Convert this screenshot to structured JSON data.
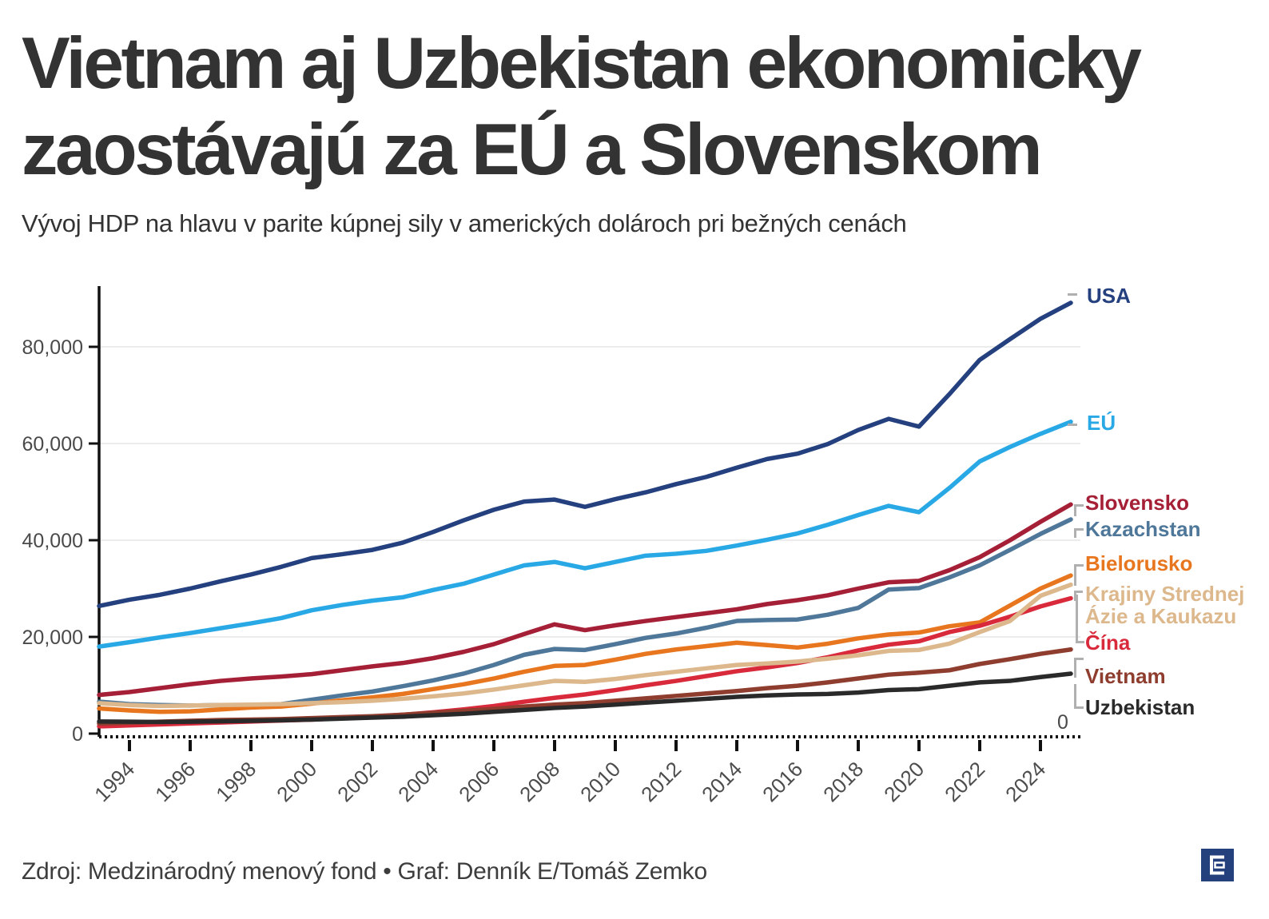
{
  "header": {
    "title_line1": "Vietnam aj Uzbekistan ekonomicky",
    "title_line2": "zaostávajú za EÚ a Slovenskom",
    "subtitle": "Vývoj HDP na hlavu v parite kúpnej sily v amerických dolároch pri bežných cenách"
  },
  "footer": {
    "source": "Zdroj: Medzinárodný menový fond • Graf: Denník E/Tomáš Zemko",
    "logo_name": "dennik-e-logo"
  },
  "chart_data": {
    "type": "line",
    "title": "Vývoj HDP na hlavu v parite kúpnej sily v amerických dolároch pri bežných cenách",
    "xlabel": "",
    "ylabel": "",
    "grid": true,
    "legend_position": "right",
    "xlim": [
      1993,
      2025.3
    ],
    "ylim": [
      0,
      96000
    ],
    "xticks": [
      1994,
      1996,
      1998,
      2000,
      2002,
      2004,
      2006,
      2008,
      2010,
      2012,
      2014,
      2016,
      2018,
      2020,
      2022,
      2024
    ],
    "yticks": [
      0,
      20000,
      40000,
      60000,
      80000
    ],
    "ytick_labels": [
      "0",
      "20,000",
      "40,000",
      "60,000",
      "80,000"
    ],
    "right_zero_label": "0",
    "x": [
      1993,
      1994,
      1995,
      1996,
      1997,
      1998,
      1999,
      2000,
      2001,
      2002,
      2003,
      2004,
      2005,
      2006,
      2007,
      2008,
      2009,
      2010,
      2011,
      2012,
      2013,
      2014,
      2015,
      2016,
      2017,
      2018,
      2019,
      2020,
      2021,
      2022,
      2023,
      2024,
      2025
    ],
    "series": [
      {
        "id": "usa",
        "label": "USA",
        "color": "#24407e",
        "values": [
          26400,
          27700,
          28700,
          30000,
          31500,
          32900,
          34500,
          36300,
          37100,
          38000,
          39500,
          41700,
          44100,
          46300,
          48000,
          48400,
          46900,
          48500,
          49900,
          51600,
          53100,
          55000,
          56800,
          57900,
          59900,
          62800,
          65100,
          63500,
          70200,
          77300,
          81600,
          85800,
          89100
        ]
      },
      {
        "id": "eu",
        "label": "EÚ",
        "color": "#29a8e6",
        "values": [
          18000,
          18900,
          19900,
          20800,
          21800,
          22800,
          23900,
          25500,
          26600,
          27500,
          28200,
          29700,
          31000,
          32900,
          34800,
          35500,
          34200,
          35500,
          36800,
          37200,
          37800,
          38900,
          40100,
          41400,
          43200,
          45200,
          47100,
          45800,
          50800,
          56300,
          59300,
          62000,
          64500
        ]
      },
      {
        "id": "slovensko",
        "label": "Slovensko",
        "color": "#a52036",
        "values": [
          8000,
          8600,
          9400,
          10200,
          10900,
          11400,
          11800,
          12300,
          13100,
          13900,
          14600,
          15600,
          16900,
          18500,
          20600,
          22600,
          21400,
          22400,
          23300,
          24100,
          24900,
          25700,
          26800,
          27600,
          28600,
          30000,
          31300,
          31600,
          33800,
          36500,
          40000,
          43800,
          47400
        ]
      },
      {
        "id": "kazachstan",
        "label": "Kazachstan",
        "color": "#4e7799",
        "values": [
          6600,
          6100,
          5900,
          5800,
          5900,
          5800,
          6100,
          7000,
          7900,
          8700,
          9800,
          11000,
          12400,
          14200,
          16300,
          17500,
          17300,
          18500,
          19800,
          20700,
          21900,
          23300,
          23500,
          23600,
          24600,
          26000,
          29800,
          30100,
          32300,
          34800,
          38000,
          41300,
          44300
        ]
      },
      {
        "id": "bielorusko",
        "label": "Bielorusko",
        "color": "#e8761f",
        "values": [
          5200,
          4800,
          4500,
          4600,
          5000,
          5400,
          5600,
          6200,
          6900,
          7500,
          8200,
          9200,
          10200,
          11400,
          12800,
          14000,
          14200,
          15300,
          16500,
          17400,
          18100,
          18800,
          18300,
          17800,
          18600,
          19700,
          20500,
          20900,
          22200,
          23000,
          26500,
          30000,
          32700
        ]
      },
      {
        "id": "krajiny-strednej-azie",
        "label": "Krajiny Strednej Ázie a Kaukazu",
        "label_lines": [
          "Krajiny Strednej",
          "Ázie a Kaukazu"
        ],
        "color": "#dcb88c",
        "values": [
          6300,
          5900,
          5700,
          5800,
          5900,
          6000,
          6100,
          6300,
          6500,
          6800,
          7200,
          7700,
          8300,
          9100,
          10000,
          10900,
          10700,
          11300,
          12100,
          12800,
          13500,
          14200,
          14500,
          14900,
          15500,
          16200,
          17100,
          17300,
          18600,
          21000,
          23300,
          28500,
          30800
        ]
      },
      {
        "id": "cina",
        "label": "Čína",
        "color": "#d92a3c",
        "values": [
          1500,
          1700,
          1900,
          2100,
          2300,
          2500,
          2700,
          2900,
          3200,
          3500,
          3900,
          4400,
          5000,
          5700,
          6600,
          7400,
          8100,
          9000,
          10000,
          10900,
          11900,
          12900,
          13700,
          14600,
          15800,
          17200,
          18400,
          19100,
          21000,
          22300,
          24200,
          26300,
          28000
        ]
      },
      {
        "id": "vietnam",
        "label": "Vietnam",
        "color": "#8e3d2e",
        "values": [
          2100,
          2250,
          2450,
          2650,
          2800,
          2900,
          3000,
          3200,
          3400,
          3600,
          3900,
          4300,
          4700,
          5100,
          5600,
          6000,
          6300,
          6800,
          7300,
          7800,
          8300,
          8800,
          9400,
          9900,
          10600,
          11400,
          12200,
          12600,
          13100,
          14400,
          15400,
          16500,
          17400
        ]
      },
      {
        "id": "uzbekistan",
        "label": "Uzbekistan",
        "color": "#2a2a2a",
        "values": [
          2500,
          2450,
          2400,
          2450,
          2550,
          2650,
          2750,
          2900,
          3100,
          3300,
          3500,
          3800,
          4100,
          4500,
          4900,
          5300,
          5600,
          6000,
          6400,
          6800,
          7200,
          7600,
          7900,
          8100,
          8200,
          8500,
          9000,
          9200,
          9900,
          10600,
          10900,
          11700,
          12400
        ]
      }
    ]
  }
}
